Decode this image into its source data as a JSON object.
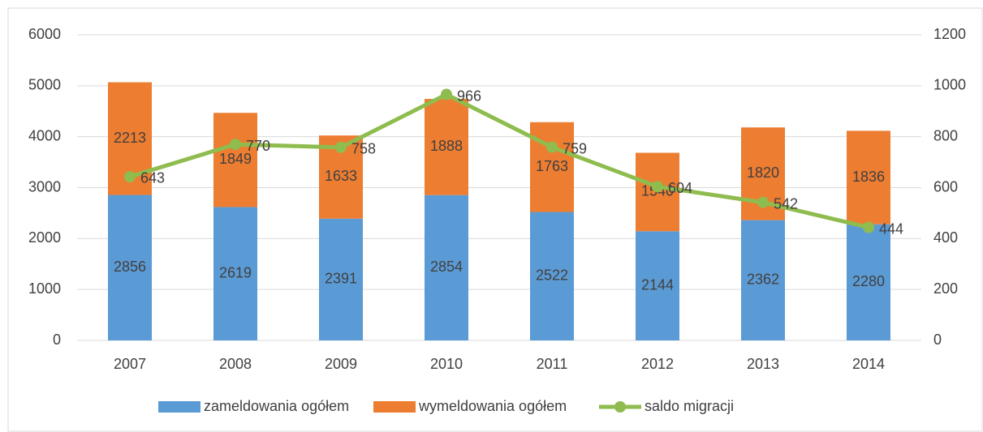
{
  "chart_data": {
    "type": "bar",
    "stacked": true,
    "categories": [
      "2007",
      "2008",
      "2009",
      "2010",
      "2011",
      "2012",
      "2013",
      "2014"
    ],
    "series": [
      {
        "name": "zameldowania ogółem",
        "type": "bar",
        "color": "#5b9bd5",
        "values": [
          2856,
          2619,
          2391,
          2854,
          2522,
          2144,
          2362,
          2280
        ]
      },
      {
        "name": "wymeldowania ogółem",
        "type": "bar",
        "color": "#ed7d31",
        "values": [
          2213,
          1849,
          1633,
          1888,
          1763,
          1540,
          1820,
          1836
        ]
      },
      {
        "name": "saldo migracji",
        "type": "line",
        "axis": "y2",
        "color": "#8fbc4e",
        "values": [
          643,
          770,
          758,
          966,
          759,
          604,
          542,
          444
        ]
      }
    ],
    "ylim": [
      0,
      6000
    ],
    "yticks": [
      0,
      1000,
      2000,
      3000,
      4000,
      5000,
      6000
    ],
    "y2lim": [
      0,
      1200
    ],
    "y2ticks": [
      0,
      200,
      400,
      600,
      800,
      1000,
      1200
    ],
    "grid": true,
    "legend": "bottom"
  }
}
